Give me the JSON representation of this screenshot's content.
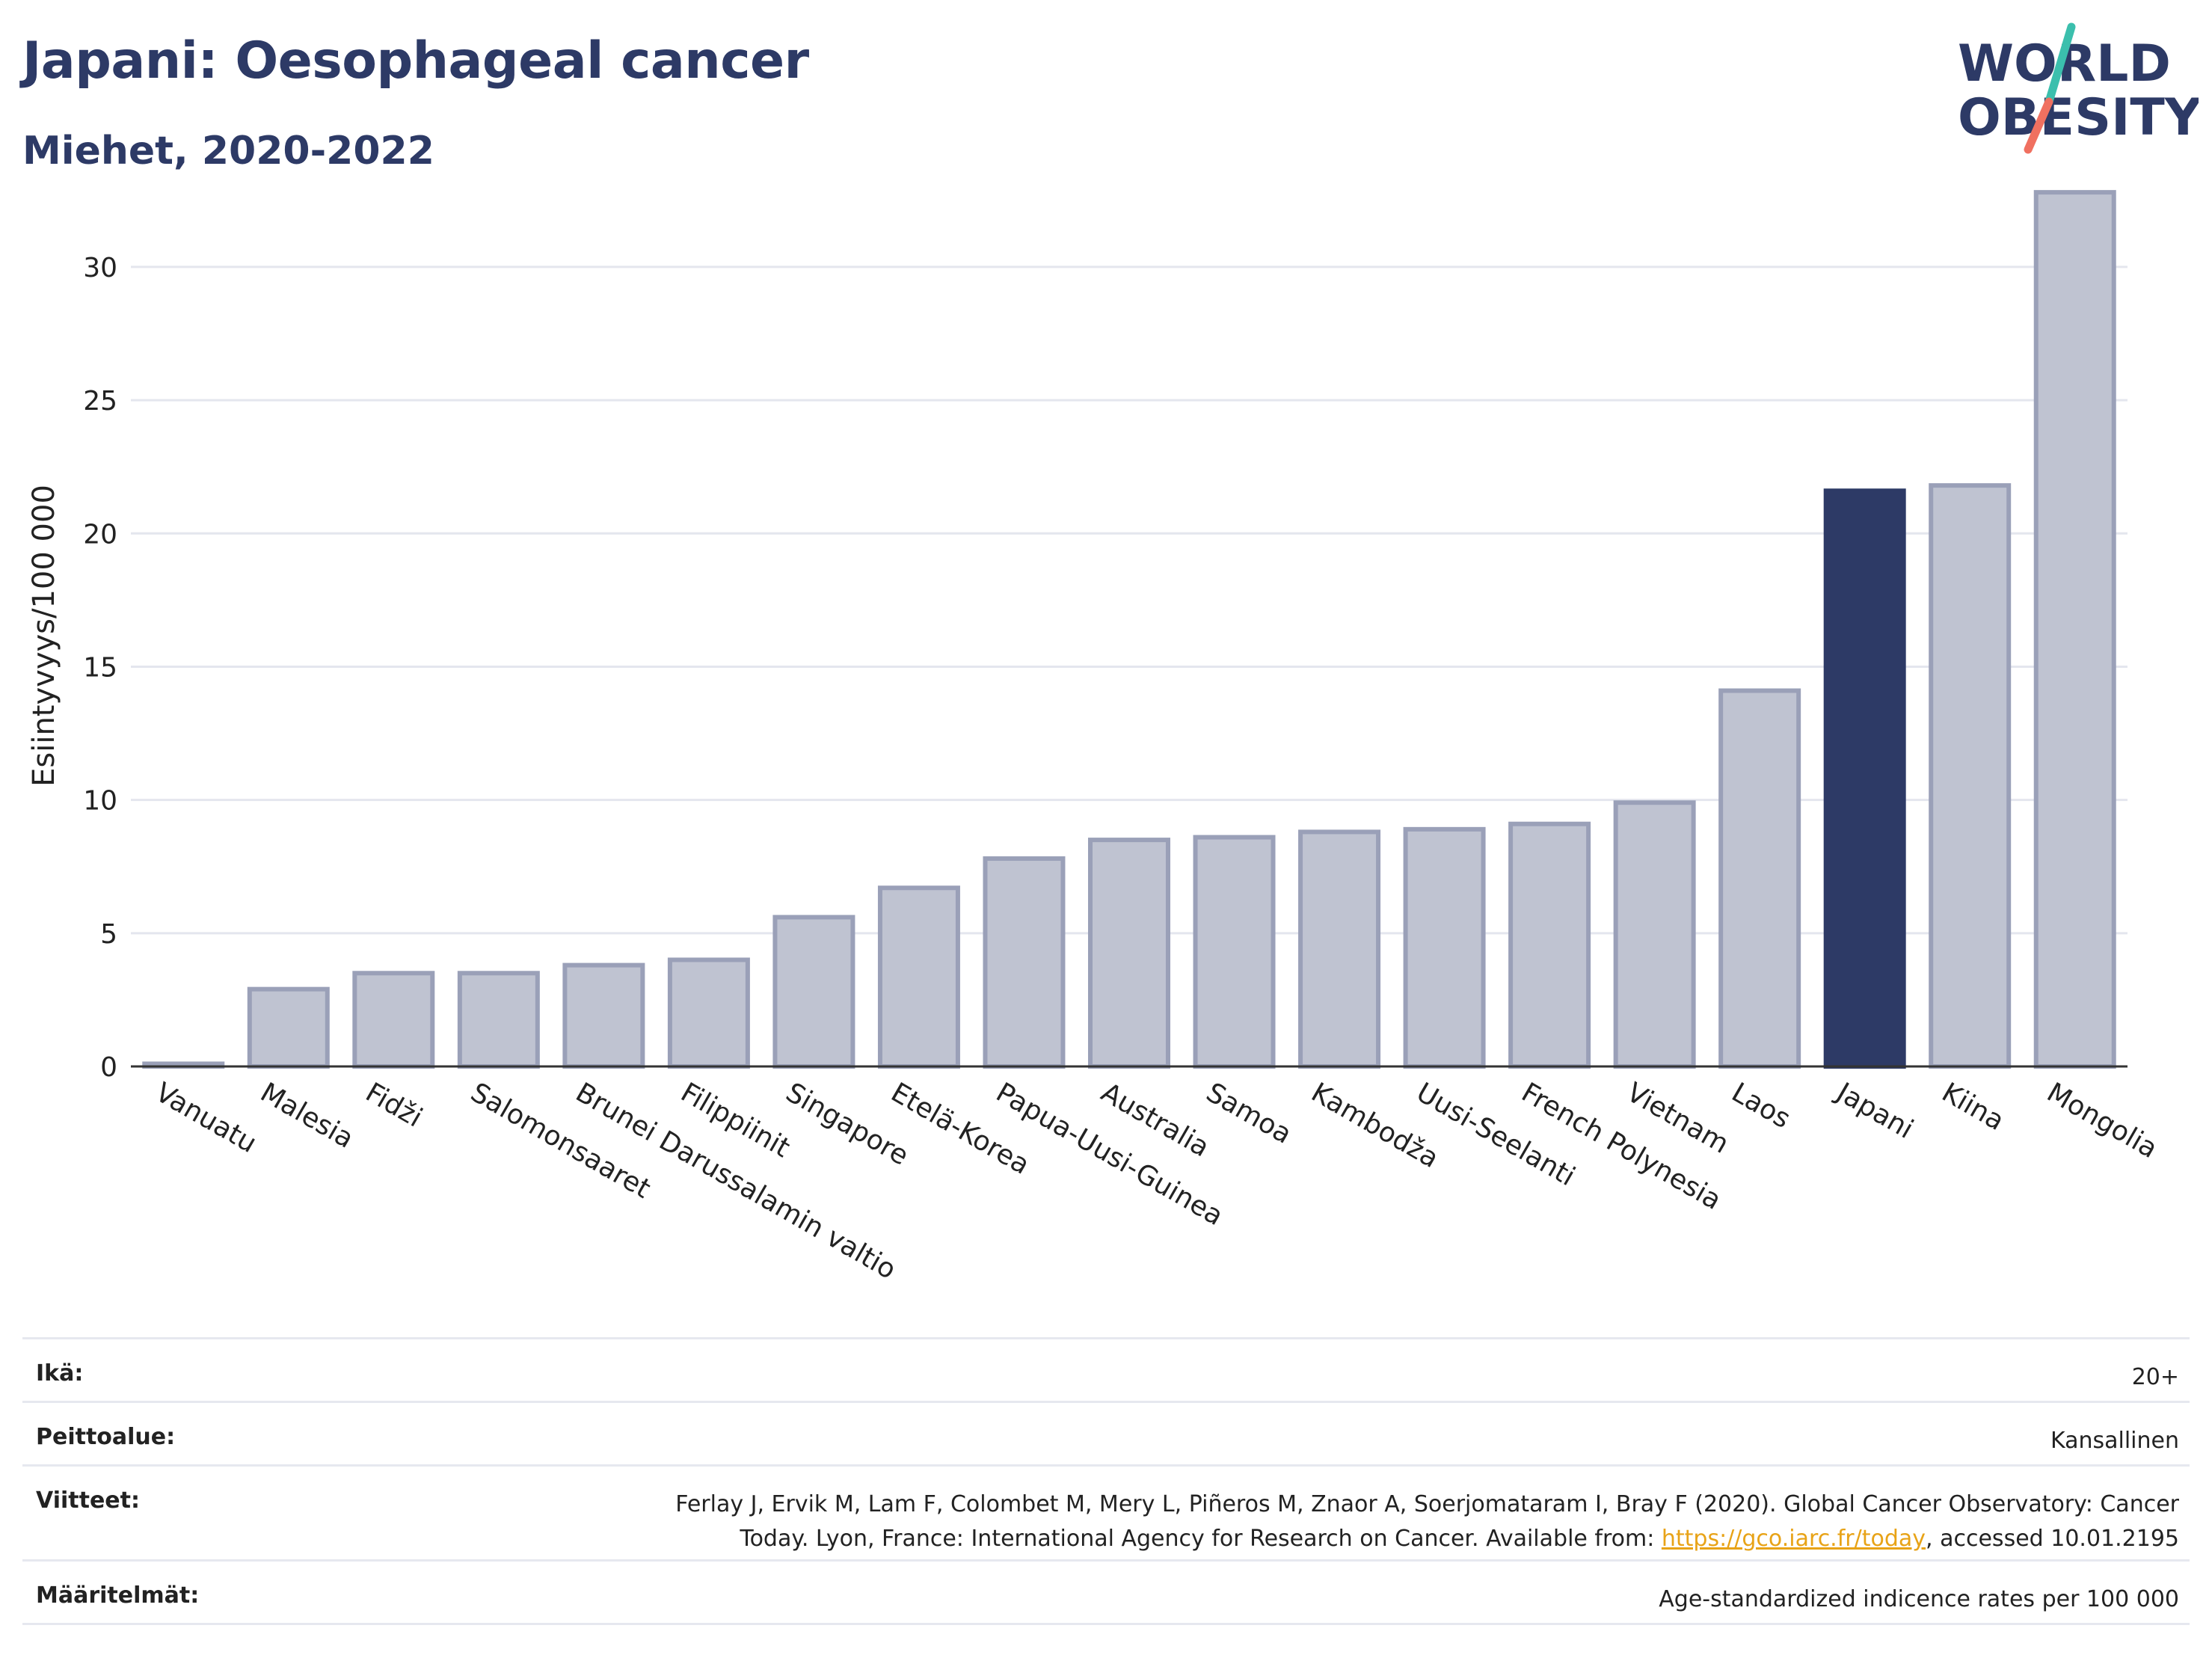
{
  "header": {
    "title": "Japani: Oesophageal cancer",
    "subtitle": "Miehet, 2020-2022"
  },
  "logo": {
    "line1": "WORLD",
    "line2": "OBESITY",
    "colors": {
      "text": "#2d3a66",
      "slash_top": "#3bbfad",
      "slash_bottom": "#f07060"
    }
  },
  "chart_data": {
    "type": "bar",
    "ylabel": "Esiintyvyys/100 000",
    "xlabel": "",
    "ylim": [
      0,
      33
    ],
    "yticks": [
      0,
      5,
      10,
      15,
      20,
      25,
      30
    ],
    "grid": true,
    "categories": [
      "Vanuatu",
      "Malesia",
      "Fidži",
      "Salomonsaaret",
      "Brunei Darussalamin valtio",
      "Filippiinit",
      "Singapore",
      "Etelä-Korea",
      "Papua-Uusi-Guinea",
      "Australia",
      "Samoa",
      "Kambodža",
      "Uusi-Seelanti",
      "French Polynesia",
      "Vietnam",
      "Laos",
      "Japani",
      "Kiina",
      "Mongolia"
    ],
    "values": [
      0.1,
      2.9,
      3.5,
      3.5,
      3.8,
      4.0,
      5.6,
      6.7,
      7.8,
      8.5,
      8.6,
      8.8,
      8.9,
      9.1,
      9.9,
      14.1,
      21.6,
      21.8,
      32.8
    ],
    "highlight": "Japani",
    "colors": {
      "bar": "#bfc3d1",
      "bar_edge": "#9aa0b8",
      "highlight": "#2d3a66",
      "grid": "#e4e6ee",
      "axis": "#333333"
    }
  },
  "info": {
    "rows": [
      {
        "label": "Ikä:",
        "value": "20+"
      },
      {
        "label": "Peittoalue:",
        "value": "Kansallinen"
      },
      {
        "label": "Viitteet:",
        "value_line1": "Ferlay J, Ervik M, Lam F, Colombet M, Mery L, Piñeros M, Znaor A, Soerjomataram I, Bray F (2020). Global Cancer Observatory: Cancer",
        "value_line2_pre": "Today. Lyon, France: International Agency for Research on Cancer. Available from: ",
        "link": "https://gco.iarc.fr/today",
        "value_line2_post": ", accessed 10.01.2195"
      },
      {
        "label": "Määritelmät:",
        "value": "Age-standardized indicence rates per 100 000"
      }
    ]
  }
}
